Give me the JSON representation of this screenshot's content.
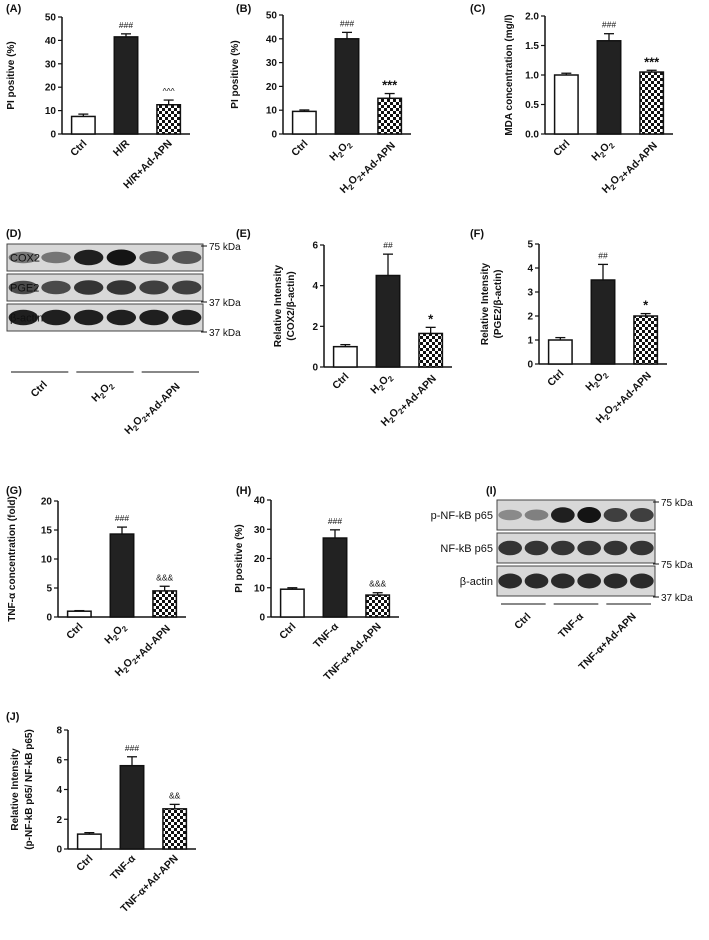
{
  "chart_data": [
    {
      "panel": "(A)",
      "type": "bar",
      "categories": [
        "Ctrl",
        "H/R",
        "H/R+Ad-APN"
      ],
      "values": [
        7.5,
        41.5,
        12.5
      ],
      "errors": [
        1.0,
        1.3,
        2.0
      ],
      "significance": [
        "",
        "###",
        "^^^"
      ],
      "ylabel": "PI positive (%)",
      "ylim": [
        0,
        50
      ],
      "yticks": [
        "0",
        "10",
        "20",
        "30",
        "40",
        "50"
      ]
    },
    {
      "panel": "(B)",
      "type": "bar",
      "categories": [
        "Ctrl",
        "H2O2",
        "H2O2+Ad-APN"
      ],
      "values": [
        9.5,
        40,
        15
      ],
      "errors": [
        0.6,
        2.7,
        2.0
      ],
      "significance": [
        "",
        "###",
        "***"
      ],
      "ylabel": "PI positive (%)",
      "ylim": [
        0,
        50
      ],
      "yticks": [
        "0",
        "10",
        "20",
        "30",
        "40",
        "50"
      ]
    },
    {
      "panel": "(C)",
      "type": "bar",
      "categories": [
        "Ctrl",
        "H2O2",
        "H2O2+Ad-APN"
      ],
      "values": [
        1.0,
        1.58,
        1.05
      ],
      "errors": [
        0.03,
        0.12,
        0.03
      ],
      "significance": [
        "",
        "###",
        "***"
      ],
      "ylabel": "MDA concentration (mg/l)",
      "ylim": [
        0,
        2
      ],
      "yticks": [
        "0.0",
        "0.5",
        "1.0",
        "1.5",
        "2.0"
      ]
    },
    {
      "panel": "(E)",
      "type": "bar",
      "categories": [
        "Ctrl",
        "H2O2",
        "H2O2+Ad-APN"
      ],
      "values": [
        1.0,
        4.5,
        1.65
      ],
      "errors": [
        0.1,
        1.05,
        0.3
      ],
      "significance": [
        "",
        "##",
        "*"
      ],
      "ylabel": "Relative Intensity",
      "ylabel2": "(COX2/β-actin)",
      "ylim": [
        0,
        6
      ],
      "yticks": [
        "0",
        "2",
        "4",
        "6"
      ]
    },
    {
      "panel": "(F)",
      "type": "bar",
      "categories": [
        "Ctrl",
        "H2O2",
        "H2O2+Ad-APN"
      ],
      "values": [
        1.0,
        3.5,
        2.0
      ],
      "errors": [
        0.1,
        0.65,
        0.1
      ],
      "significance": [
        "",
        "##",
        "*"
      ],
      "ylabel": "Relative Intensity",
      "ylabel2": "(PGE2/β-actin)",
      "ylim": [
        0,
        5
      ],
      "yticks": [
        "0",
        "1",
        "2",
        "3",
        "4",
        "5"
      ]
    },
    {
      "panel": "(G)",
      "type": "bar",
      "categories": [
        "Ctrl",
        "H2O2",
        "H2O2+Ad-APN"
      ],
      "values": [
        1.0,
        14.3,
        4.5
      ],
      "errors": [
        0.1,
        1.2,
        0.8
      ],
      "significance": [
        "",
        "###",
        "&&&"
      ],
      "ylabel": "TNF-α concentration (fold)",
      "ylim": [
        0,
        20
      ],
      "yticks": [
        "0",
        "5",
        "10",
        "15",
        "20"
      ]
    },
    {
      "panel": "(H)",
      "type": "bar",
      "categories": [
        "Ctrl",
        "TNF-α",
        "TNF-α+Ad-APN"
      ],
      "values": [
        9.5,
        27,
        7.5
      ],
      "errors": [
        0.5,
        2.8,
        0.8
      ],
      "significance": [
        "",
        "###",
        "&&&"
      ],
      "ylabel": "PI positive (%)",
      "ylim": [
        0,
        40
      ],
      "yticks": [
        "0",
        "10",
        "20",
        "30",
        "40"
      ]
    },
    {
      "panel": "(J)",
      "type": "bar",
      "categories": [
        "Ctrl",
        "TNF-α",
        "TNF-α+Ad-APN"
      ],
      "values": [
        1.0,
        5.6,
        2.7
      ],
      "errors": [
        0.1,
        0.6,
        0.3
      ],
      "significance": [
        "",
        "###",
        "&&"
      ],
      "ylabel": "Relative Intensity",
      "ylabel2": "(p-NF-kB p65/ NF-kB p65)",
      "ylim": [
        0,
        8
      ],
      "yticks": [
        "0",
        "2",
        "4",
        "6",
        "8"
      ]
    }
  ],
  "blots": [
    {
      "panel": "(D)",
      "bands": [
        "COX2",
        "PGE2",
        "β-actin"
      ],
      "markers": [
        "75 kDa",
        "37 kDa",
        "37 kDa"
      ],
      "groups": [
        "Ctrl",
        "H2O2",
        "H2O2+Ad-APN"
      ],
      "intensity": [
        [
          0.55,
          0.55,
          0.95,
          1.0,
          0.7,
          0.7
        ],
        [
          0.75,
          0.75,
          0.85,
          0.85,
          0.8,
          0.8
        ],
        [
          0.95,
          0.95,
          0.95,
          0.95,
          0.95,
          0.95
        ]
      ]
    },
    {
      "panel": "(I)",
      "bands": [
        "p-NF-kB p65",
        "NF-kB p65",
        "β-actin"
      ],
      "markers": [
        "75 kDa",
        "75 kDa",
        "37 kDa"
      ],
      "groups": [
        "Ctrl",
        "TNF-α",
        "TNF-α+Ad-APN"
      ],
      "intensity": [
        [
          0.45,
          0.5,
          0.95,
          1.0,
          0.8,
          0.8
        ],
        [
          0.85,
          0.85,
          0.85,
          0.85,
          0.85,
          0.85
        ],
        [
          0.9,
          0.9,
          0.9,
          0.9,
          0.9,
          0.9
        ]
      ]
    }
  ]
}
